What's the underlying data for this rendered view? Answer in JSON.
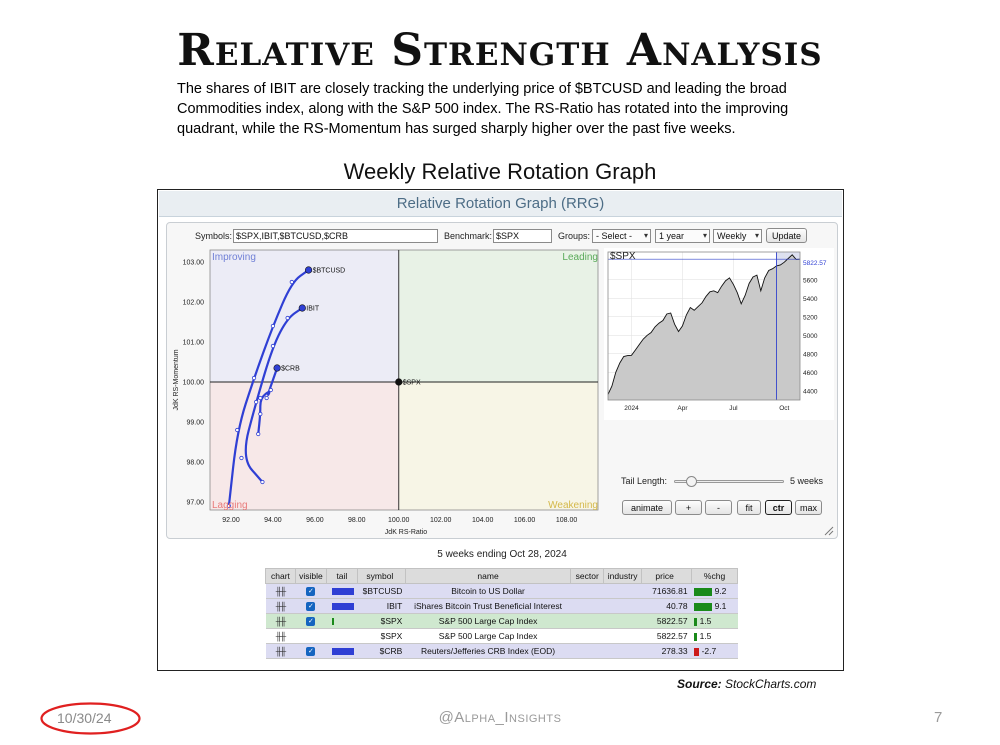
{
  "slide": {
    "title": "Relative Strength Analysis",
    "description": "The shares of IBIT are closely tracking the underlying price of $BTCUSD and leading the broad Commodities index, along with the S&P 500 index. The RS-Ratio has rotated into the improving quadrant, while the RS-Momentum has surged sharply higher over the past five weeks.",
    "graph_heading": "Weekly Relative Rotation Graph",
    "source_label": "Source:",
    "source_value": "StockCharts.com",
    "date": "10/30/24",
    "handle": "@Alpha_Insights",
    "page_number": "7",
    "date_circle_color": "#e02020"
  },
  "rrg": {
    "header": "Relative Rotation Graph (RRG)",
    "controls": {
      "symbols_label": "Symbols:",
      "symbols_value": "$SPX,IBIT,$BTCUSD,$CRB",
      "benchmark_label": "Benchmark:",
      "benchmark_value": "$SPX",
      "groups_label": "Groups:",
      "groups_value": "- Select -",
      "period_value": "1 year",
      "frequency_value": "Weekly",
      "update_button": "Update"
    },
    "quadrants": {
      "improving": "Improving",
      "leading": "Leading",
      "lagging": "Lagging",
      "weakening": "Weakening",
      "colors": {
        "improving": "#6f7fd6",
        "leading": "#5aaa5a",
        "lagging": "#e87a7a",
        "weakening": "#d4b84a"
      }
    },
    "tail_length_label": "Tail Length:",
    "tail_length_value": "5 weeks",
    "tail_length_weeks": 5,
    "buttons": [
      "animate",
      "+",
      "-",
      "fit",
      "ctr",
      "max"
    ],
    "active_button": "ctr",
    "weeks_ending": "5 weeks ending Oct 28, 2024"
  },
  "table": {
    "headers": [
      "chart",
      "visible",
      "tail",
      "symbol",
      "name",
      "sector",
      "industry",
      "price",
      "%chg"
    ],
    "rows": [
      {
        "symbol": "$BTCUSD",
        "name": "Bitcoin to US Dollar",
        "sector": "",
        "industry": "",
        "price": "71636.81",
        "pct": "9.2",
        "visible": true,
        "tail": "#2f3fd4",
        "bg": "#dcdcf2",
        "pct_color": "#1a8a1a"
      },
      {
        "symbol": "IBIT",
        "name": "iShares Bitcoin Trust Beneficial Interest",
        "sector": "",
        "industry": "",
        "price": "40.78",
        "pct": "9.1",
        "visible": true,
        "tail": "#2f3fd4",
        "bg": "#dcdcf2",
        "pct_color": "#1a8a1a"
      },
      {
        "symbol": "$SPX",
        "name": "S&P 500 Large Cap Index",
        "sector": "",
        "industry": "",
        "price": "5822.57",
        "pct": "1.5",
        "visible": true,
        "tail": "#1a8a1a",
        "bg": "#cfe8cf",
        "pct_color": "#1a8a1a"
      },
      {
        "symbol": "$SPX",
        "name": "S&P 500 Large Cap Index",
        "sector": "",
        "industry": "",
        "price": "5822.57",
        "pct": "1.5",
        "visible": false,
        "tail": "",
        "bg": "#ffffff",
        "pct_color": "#1a8a1a"
      },
      {
        "symbol": "$CRB",
        "name": "Reuters/Jefferies CRB Index (EOD)",
        "sector": "",
        "industry": "",
        "price": "278.33",
        "pct": "-2.7",
        "visible": true,
        "tail": "#2f3fd4",
        "bg": "#dcdcf2",
        "pct_color": "#cc1a1a"
      }
    ]
  },
  "chart_data": [
    {
      "type": "scatter",
      "title": "",
      "xlabel": "JdK RS-Ratio",
      "ylabel": "JdK RS-Momentum",
      "xlim": [
        91.0,
        109.5
      ],
      "ylim": [
        96.8,
        103.3
      ],
      "x_ticks": [
        "92.00",
        "94.00",
        "96.00",
        "98.00",
        "100.00",
        "102.00",
        "104.00",
        "106.00",
        "108.00"
      ],
      "y_ticks": [
        "97.00",
        "98.00",
        "99.00",
        "100.00",
        "101.00",
        "102.00",
        "103.00"
      ],
      "center": [
        100,
        100
      ],
      "series": [
        {
          "name": "$BTCUSD",
          "color": "#2f3fd4",
          "points": [
            [
              91.9,
              96.9
            ],
            [
              92.3,
              98.8
            ],
            [
              93.1,
              100.1
            ],
            [
              94.0,
              101.4
            ],
            [
              94.9,
              102.5
            ],
            [
              95.7,
              102.8
            ]
          ]
        },
        {
          "name": "IBIT",
          "color": "#2f3fd4",
          "points": [
            [
              93.5,
              97.5
            ],
            [
              92.5,
              98.1
            ],
            [
              93.2,
              99.5
            ],
            [
              94.0,
              100.9
            ],
            [
              94.7,
              101.6
            ],
            [
              95.4,
              101.85
            ]
          ]
        },
        {
          "name": "$CRB",
          "color": "#2f3fd4",
          "points": [
            [
              93.3,
              98.7
            ],
            [
              93.4,
              99.2
            ],
            [
              93.4,
              99.6
            ],
            [
              93.9,
              99.8
            ],
            [
              93.7,
              99.6
            ],
            [
              94.2,
              100.35
            ]
          ]
        },
        {
          "name": "$SPX",
          "color": "#111111",
          "points": [
            [
              100.0,
              100.0
            ]
          ]
        }
      ]
    },
    {
      "type": "area",
      "title": "$SPX",
      "last_value": "5822.57",
      "ylim": [
        4300,
        5900
      ],
      "y_ticks": [
        "4400",
        "4600",
        "4800",
        "5000",
        "5200",
        "5400",
        "5600"
      ],
      "x_ticks": [
        "2024",
        "Apr",
        "Jul",
        "Oct"
      ],
      "x_tick_index": [
        6,
        19,
        32,
        45
      ],
      "values": [
        4360,
        4450,
        4600,
        4700,
        4770,
        4780,
        4783,
        4840,
        4900,
        4960,
        5000,
        5030,
        5090,
        5130,
        5160,
        5230,
        5240,
        5120,
        5040,
        5100,
        5220,
        5300,
        5270,
        5310,
        5350,
        5420,
        5470,
        5480,
        5460,
        5530,
        5590,
        5620,
        5550,
        5460,
        5340,
        5430,
        5560,
        5630,
        5650,
        5480,
        5620,
        5700,
        5720,
        5750,
        5760,
        5790,
        5830,
        5870,
        5820,
        5822.57
      ],
      "highlight_from_index": 43
    }
  ]
}
